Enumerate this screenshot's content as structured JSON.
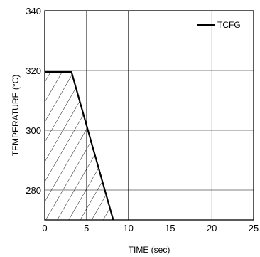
{
  "chart_data": {
    "type": "line",
    "title": "",
    "xlabel": "TIME  (sec)",
    "ylabel": "TEMPERATURE (°C)",
    "xlim": [
      0,
      25
    ],
    "ylim": [
      270,
      340
    ],
    "xticks": [
      0,
      5,
      10,
      15,
      20,
      25
    ],
    "yticks": [
      280,
      300,
      320,
      340
    ],
    "xtick_labels": [
      "0",
      "5",
      "10",
      "15",
      "20",
      "25"
    ],
    "ytick_labels": [
      "280",
      "300",
      "320",
      "340"
    ],
    "grid": true,
    "legend_position": "top-right",
    "series": [
      {
        "name": "TCFG",
        "x": [
          0,
          3.2,
          8.2
        ],
        "y": [
          319.5,
          319.5,
          270
        ],
        "color": "#000000",
        "hatched_below": true
      }
    ]
  }
}
